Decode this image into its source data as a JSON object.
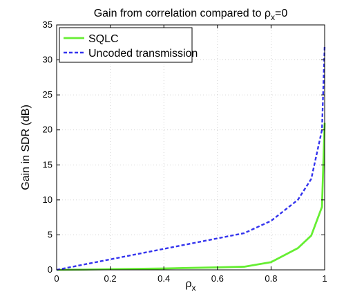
{
  "chart_data": {
    "type": "line",
    "title_main": "Gain from correlation compared to ρ",
    "title_sub": "x",
    "title_tail": "=0",
    "xlabel_main": "ρ",
    "xlabel_sub": "x",
    "ylabel": "Gain in SDR (dB)",
    "xlim": [
      0,
      1
    ],
    "ylim": [
      0,
      35
    ],
    "xticks": [
      0,
      0.2,
      0.4,
      0.6,
      0.8,
      1
    ],
    "xtick_labels": [
      "0",
      "0.2",
      "0.4",
      "0.6",
      "0.8",
      "1"
    ],
    "yticks": [
      0,
      5,
      10,
      15,
      20,
      25,
      30,
      35
    ],
    "ytick_labels": [
      "0",
      "5",
      "10",
      "15",
      "20",
      "25",
      "30",
      "35"
    ],
    "grid": true,
    "legend_position": "top-left",
    "series": [
      {
        "name": "SQLC",
        "color": "#66ee33",
        "style": "solid",
        "x": [
          0,
          0.1,
          0.2,
          0.3,
          0.4,
          0.5,
          0.6,
          0.7,
          0.8,
          0.9,
          0.95,
          0.99,
          1.0
        ],
        "y": [
          0,
          0.04,
          0.1,
          0.15,
          0.2,
          0.28,
          0.35,
          0.45,
          1.1,
          3.1,
          4.9,
          9.0,
          21.0
        ]
      },
      {
        "name": "Uncoded transmission",
        "color": "#3333ee",
        "style": "dashed",
        "x": [
          0,
          0.1,
          0.2,
          0.3,
          0.4,
          0.5,
          0.6,
          0.7,
          0.8,
          0.9,
          0.95,
          0.99,
          1.0
        ],
        "y": [
          0,
          0.75,
          1.5,
          2.25,
          3.0,
          3.75,
          4.5,
          5.25,
          7.0,
          10.0,
          13.0,
          20.0,
          32.0
        ]
      }
    ]
  }
}
